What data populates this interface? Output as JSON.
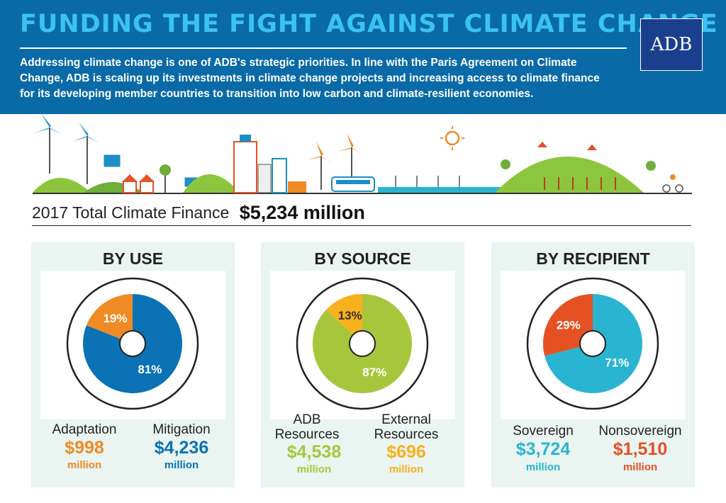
{
  "header": {
    "title": "FUNDING THE FIGHT AGAINST CLIMATE CHANGE",
    "intro": "Addressing climate change is one of ADB's strategic priorities. In line with the Paris Agreement on Climate Change, ADB is scaling up its investments in climate change projects and increasing access to climate finance for its developing member countries to transition into low carbon and  climate-resilient economies.",
    "logo_text": "ADB"
  },
  "total": {
    "label": "2017 Total Climate Finance",
    "value": "$5,234 million"
  },
  "colors": {
    "header_bg": "#0a6aa8",
    "title": "#3ac3ee",
    "adaptation": "#f08a24",
    "mitigation": "#0a72b5",
    "adb_resources": "#a8c63c",
    "external_resources": "#f7b11d",
    "sovereign": "#29b5d2",
    "nonsovereign": "#e55123",
    "panel_bg": "#eaf4f1"
  },
  "panels": [
    {
      "title": "BY USE",
      "slices": [
        {
          "label": "Mitigation",
          "percent": 81,
          "percent_text": "81%",
          "amount": "$4,236",
          "unit": "million",
          "color": "#0a72b5"
        },
        {
          "label": "Adaptation",
          "percent": 19,
          "percent_text": "19%",
          "amount": "$998",
          "unit": "million",
          "color": "#f08a24"
        }
      ]
    },
    {
      "title": "BY SOURCE",
      "slices": [
        {
          "label": "ADB Resources",
          "percent": 87,
          "percent_text": "87%",
          "amount": "$4,538",
          "unit": "million",
          "color": "#a8c63c"
        },
        {
          "label": "External Resources",
          "percent": 13,
          "percent_text": "13%",
          "amount": "$696",
          "unit": "million",
          "color": "#f7b11d"
        }
      ]
    },
    {
      "title": "BY RECIPIENT",
      "slices": [
        {
          "label": "Sovereign",
          "percent": 71,
          "percent_text": "71%",
          "amount": "$3,724",
          "unit": "million",
          "color": "#29b5d2"
        },
        {
          "label": "Nonsovereign",
          "percent": 29,
          "percent_text": "29%",
          "amount": "$1,510",
          "unit": "million",
          "color": "#e55123"
        }
      ]
    }
  ]
}
